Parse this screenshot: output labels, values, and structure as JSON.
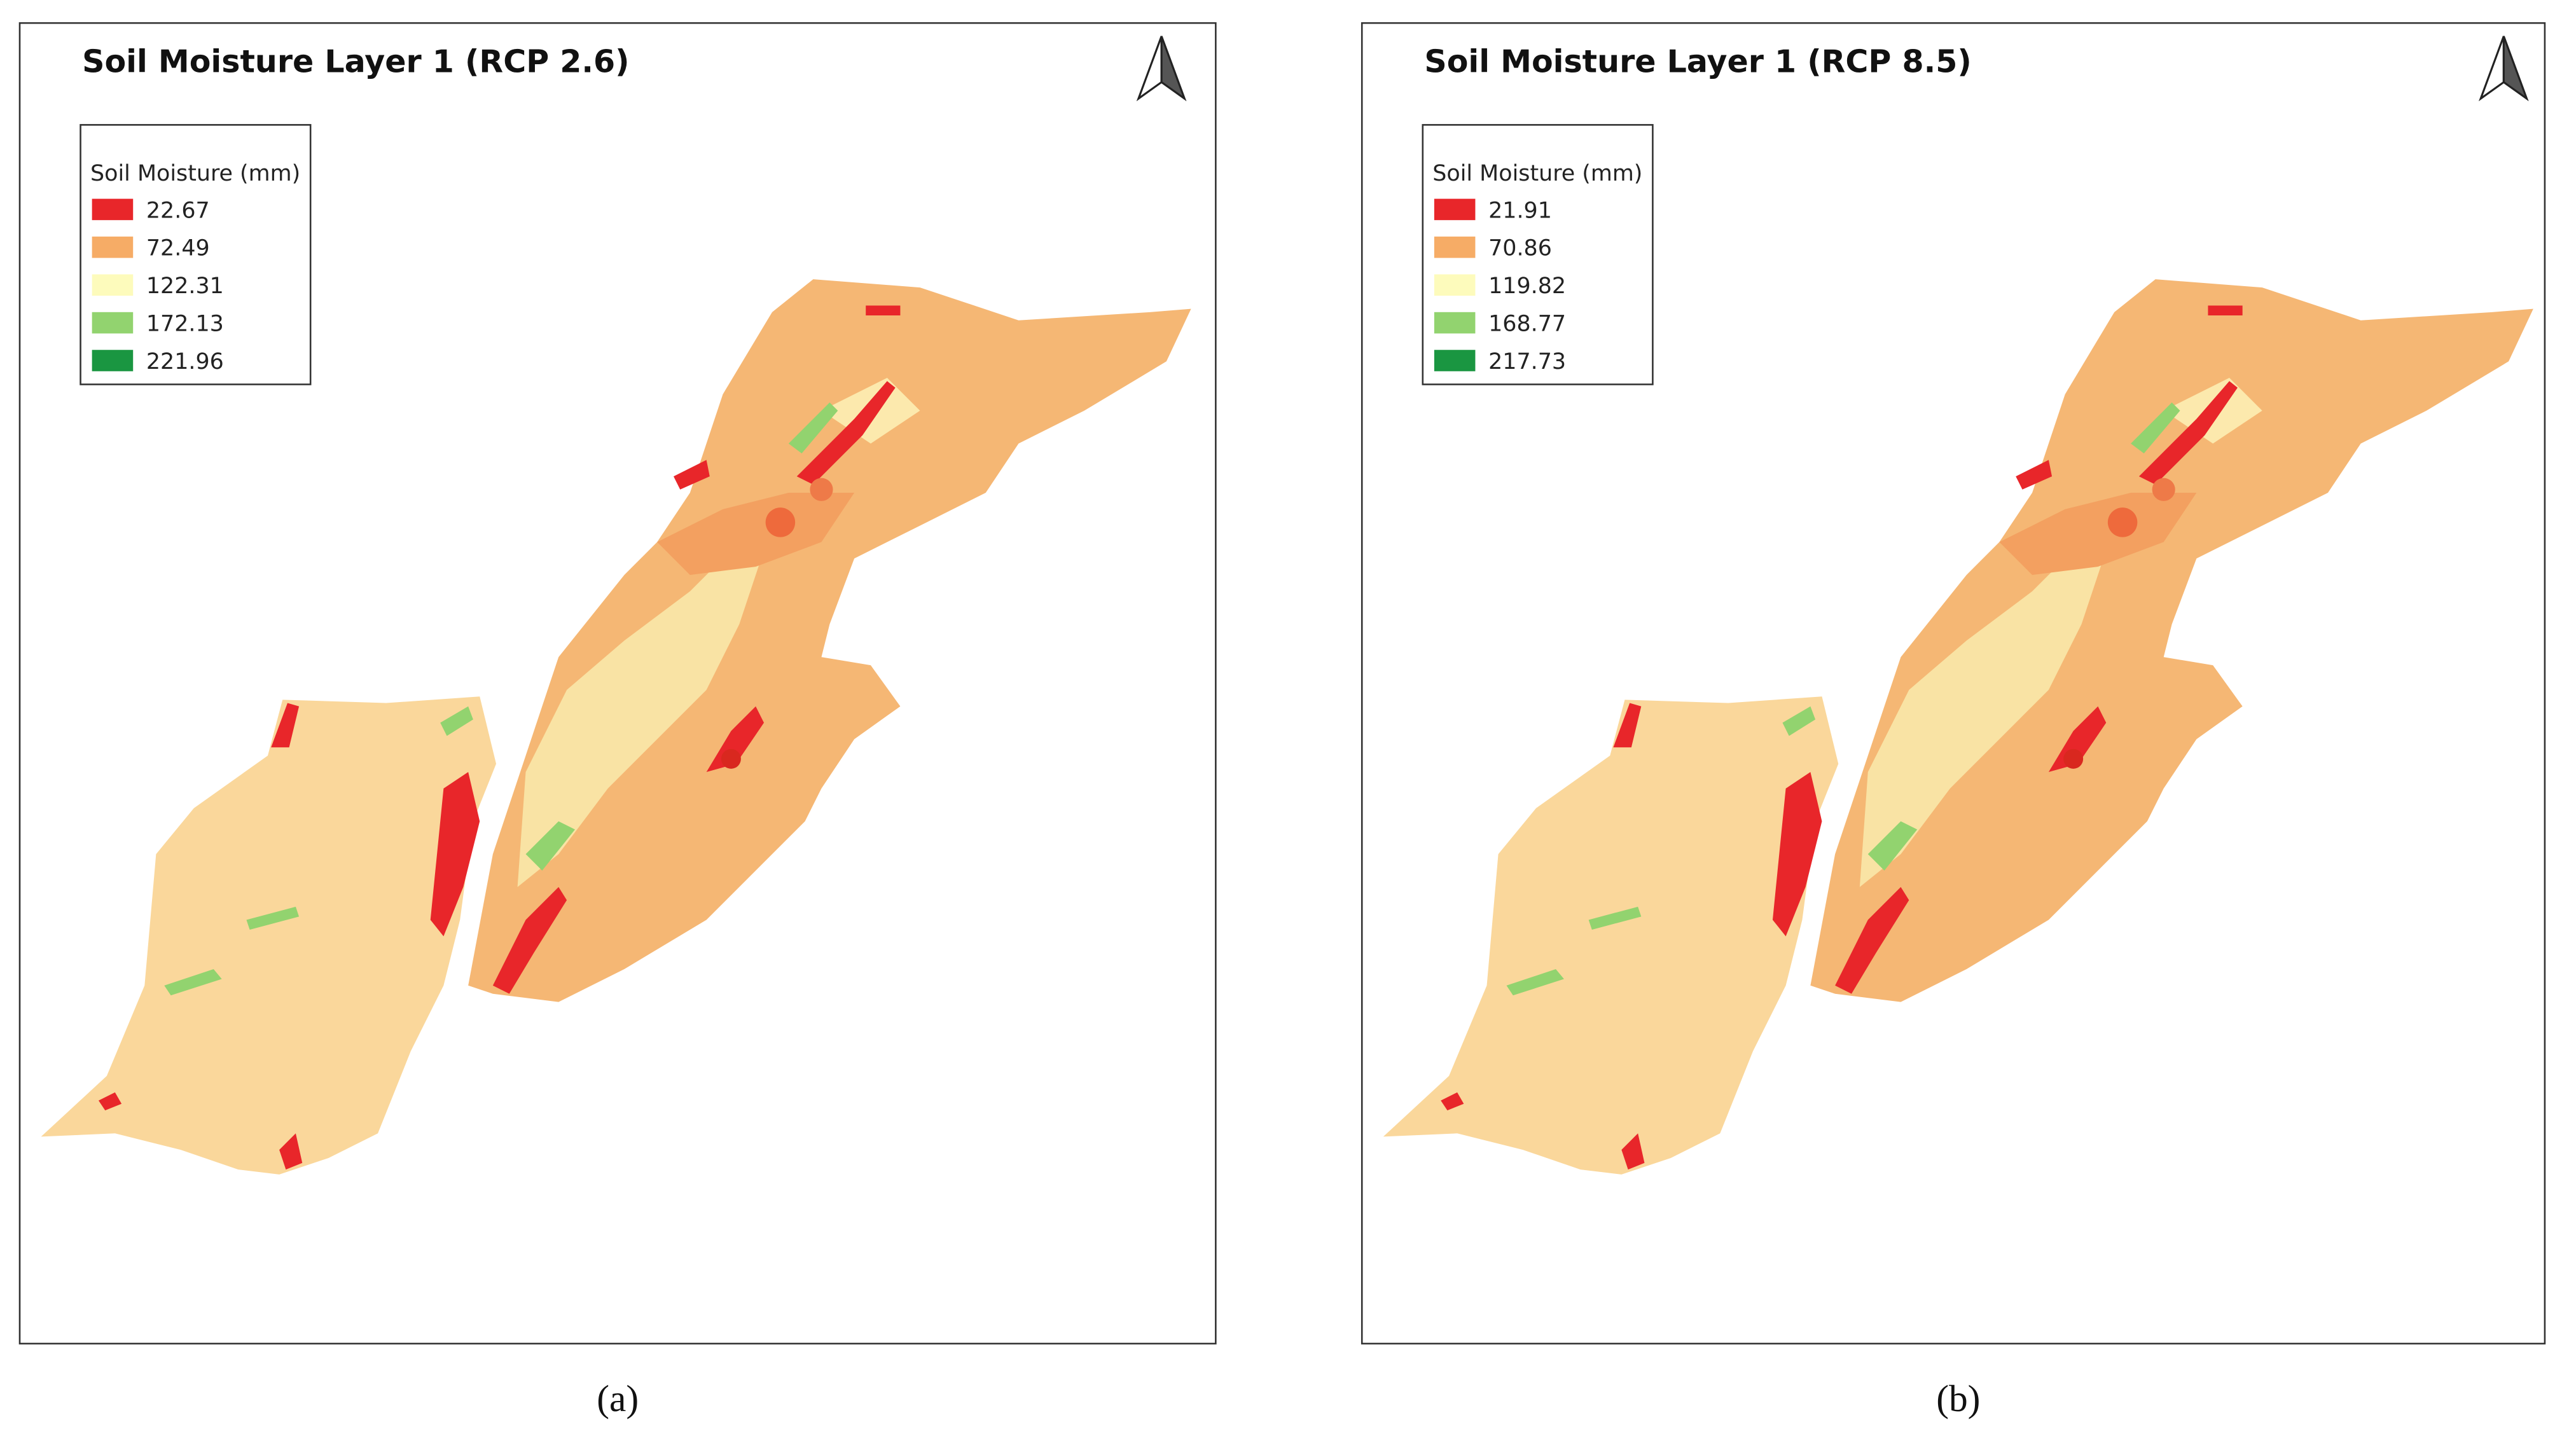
{
  "panels": [
    {
      "title": "Soil Moisture Layer 1 (RCP 2.6)",
      "legend": {
        "title": "Soil Moisture (mm)",
        "items": [
          {
            "label": "22.67",
            "color": "#e8262a"
          },
          {
            "label": "72.49",
            "color": "#f6ac66"
          },
          {
            "label": "122.31",
            "color": "#fdfbbc"
          },
          {
            "label": "172.13",
            "color": "#92d36f"
          },
          {
            "label": "221.96",
            "color": "#1a9641"
          }
        ]
      },
      "caption": "(a)"
    },
    {
      "title": "Soil Moisture Layer 1 (RCP 8.5)",
      "legend": {
        "title": "Soil Moisture (mm)",
        "items": [
          {
            "label": "21.91",
            "color": "#e8262a"
          },
          {
            "label": "70.86",
            "color": "#f6ac66"
          },
          {
            "label": "119.82",
            "color": "#fdfbbc"
          },
          {
            "label": "168.77",
            "color": "#92d36f"
          },
          {
            "label": "217.73",
            "color": "#1a9641"
          }
        ]
      },
      "caption": "(b)"
    }
  ]
}
